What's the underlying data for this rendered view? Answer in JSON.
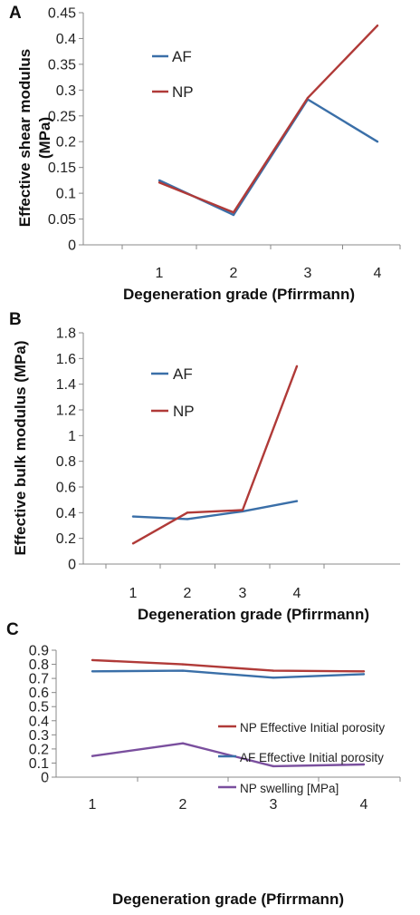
{
  "chart_data": [
    {
      "type": "line",
      "panel_label": "A",
      "categories": [
        "1",
        "2",
        "3",
        "4"
      ],
      "xlabel": "Degeneration grade (Pfirrmann)",
      "ylabel_lines": [
        "Effective shear modulus",
        "(MPa)"
      ],
      "ylim": [
        0,
        0.45
      ],
      "yticks": [
        "0",
        "0.05",
        "0.1",
        "0.15",
        "0.2",
        "0.25",
        "0.3",
        "0.35",
        "0.4",
        "0.45"
      ],
      "grid": false,
      "legend": "top-left",
      "series": [
        {
          "name": "AF",
          "color": "#3a6fa8",
          "values": [
            0.125,
            0.058,
            0.282,
            0.2
          ]
        },
        {
          "name": "NP",
          "color": "#b03a38",
          "values": [
            0.121,
            0.063,
            0.285,
            0.425
          ]
        }
      ]
    },
    {
      "type": "line",
      "panel_label": "B",
      "categories": [
        "1",
        "2",
        "3",
        "4"
      ],
      "xlabel": "Degeneration grade (Pfirrmann)",
      "ylabel_lines": [
        "Effective bulk modulus (MPa)"
      ],
      "ylim": [
        0,
        1.8
      ],
      "yticks": [
        "0",
        "0.2",
        "0.4",
        "0.6",
        "0.8",
        "1",
        "1.2",
        "1.4",
        "1.6",
        "1.8"
      ],
      "grid": false,
      "legend": "top-left",
      "series": [
        {
          "name": "AF",
          "color": "#3a6fa8",
          "values": [
            0.37,
            0.35,
            0.41,
            0.49
          ]
        },
        {
          "name": "NP",
          "color": "#b03a38",
          "values": [
            0.16,
            0.4,
            0.42,
            1.54
          ]
        }
      ]
    },
    {
      "type": "line",
      "panel_label": "C",
      "categories": [
        "1",
        "2",
        "3",
        "4"
      ],
      "xlabel": "Degeneration grade (Pfirrmann)",
      "ylabel_lines": [],
      "ylim": [
        0,
        0.9
      ],
      "yticks": [
        "0",
        "0.1",
        "0.2",
        "0.3",
        "0.4",
        "0.5",
        "0.6",
        "0.7",
        "0.8",
        "0.9"
      ],
      "grid": false,
      "legend": "right",
      "series": [
        {
          "name": "NP Effective Initial porosity",
          "color": "#b03a38",
          "values": [
            0.83,
            0.8,
            0.755,
            0.75
          ]
        },
        {
          "name": "AF Effective Initial porosity",
          "color": "#3a6fa8",
          "values": [
            0.75,
            0.755,
            0.705,
            0.73
          ]
        },
        {
          "name": "NP swelling  [MPa]",
          "color": "#7a4f9e",
          "values": [
            0.15,
            0.24,
            0.078,
            0.09
          ]
        }
      ]
    }
  ]
}
